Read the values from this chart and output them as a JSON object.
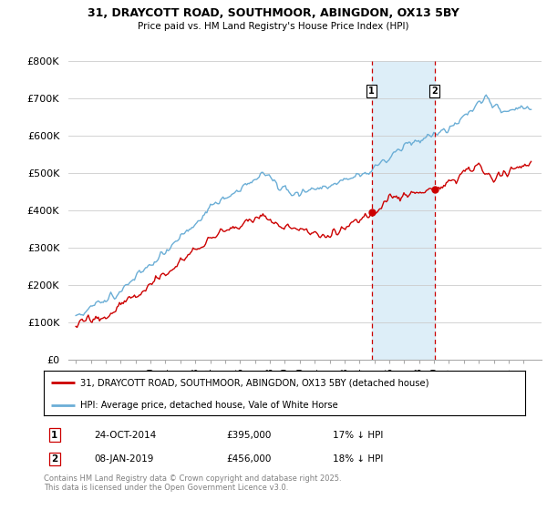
{
  "title_line1": "31, DRAYCOTT ROAD, SOUTHMOOR, ABINGDON, OX13 5BY",
  "title_line2": "Price paid vs. HM Land Registry's House Price Index (HPI)",
  "legend_entry1": "31, DRAYCOTT ROAD, SOUTHMOOR, ABINGDON, OX13 5BY (detached house)",
  "legend_entry2": "HPI: Average price, detached house, Vale of White Horse",
  "annotation1_date": "24-OCT-2014",
  "annotation1_price": "£395,000",
  "annotation1_hpi": "17% ↓ HPI",
  "annotation2_date": "08-JAN-2019",
  "annotation2_price": "£456,000",
  "annotation2_hpi": "18% ↓ HPI",
  "footnote": "Contains HM Land Registry data © Crown copyright and database right 2025.\nThis data is licensed under the Open Government Licence v3.0.",
  "hpi_color": "#6baed6",
  "price_color": "#cc0000",
  "shaded_region_color": "#ddeef8",
  "dashed_line_color": "#cc0000",
  "ylim": [
    0,
    800000
  ],
  "yticks": [
    0,
    100000,
    200000,
    300000,
    400000,
    500000,
    600000,
    700000,
    800000
  ],
  "ytick_labels": [
    "£0",
    "£100K",
    "£200K",
    "£300K",
    "£400K",
    "£500K",
    "£600K",
    "£700K",
    "£800K"
  ],
  "event1_x": 2014.82,
  "event1_y": 395000,
  "event2_x": 2019.03,
  "event2_y": 456000,
  "shade_x1": 2014.82,
  "shade_x2": 2019.03,
  "xlim_left": 1994.5,
  "xlim_right": 2026.2
}
